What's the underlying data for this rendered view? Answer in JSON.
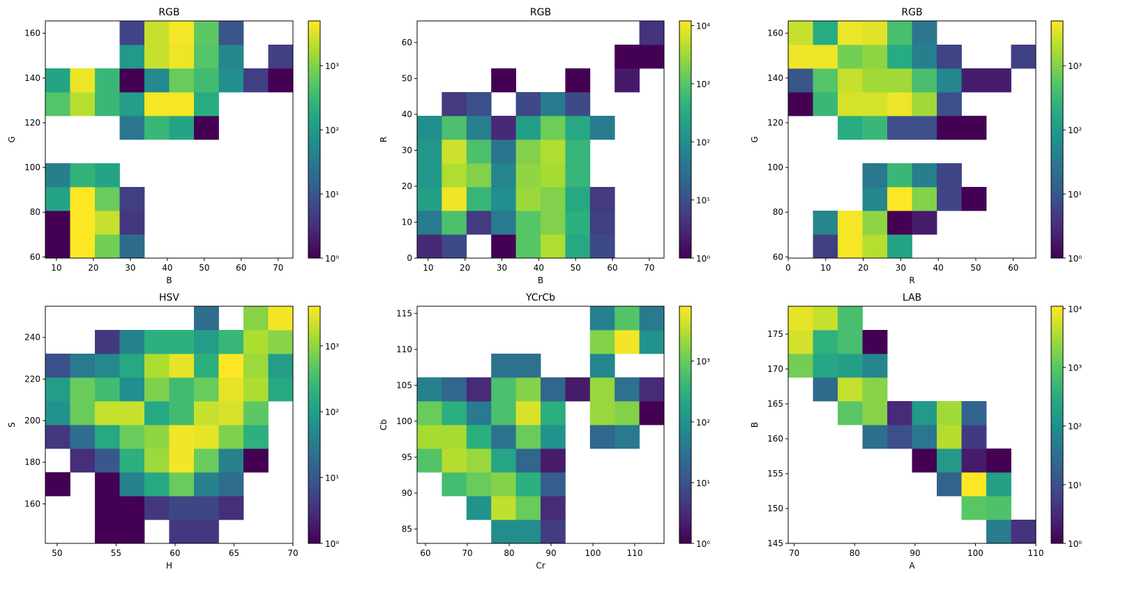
{
  "chart_data": [
    {
      "type": "heatmap",
      "title": "RGB",
      "xlabel": "B",
      "ylabel": "G",
      "xlim": [
        7,
        74
      ],
      "ylim": [
        59.5,
        165.5
      ],
      "xticks": [
        10,
        20,
        30,
        40,
        50,
        60,
        70
      ],
      "yticks": [
        60,
        80,
        100,
        120,
        140,
        160
      ],
      "x_edges": [
        7,
        13.7,
        20.4,
        27.1,
        33.8,
        40.5,
        47.2,
        53.9,
        60.6,
        67.3,
        74
      ],
      "y_edges": [
        59.5,
        70.1,
        80.7,
        91.3,
        101.9,
        112.5,
        123.1,
        133.7,
        144.3,
        154.9,
        165.5
      ],
      "colorbar": {
        "scale": "log",
        "min": 1,
        "max": 5000,
        "ticks": [
          "10^0",
          "10^1",
          "10^2",
          "10^3"
        ]
      },
      "values": [
        [
          1,
          5000,
          800,
          20,
          0,
          0,
          0,
          0,
          0,
          0
        ],
        [
          1,
          5000,
          2500,
          4,
          0,
          0,
          0,
          0,
          0,
          0
        ],
        [
          150,
          5000,
          700,
          5,
          0,
          0,
          0,
          0,
          0,
          0
        ],
        [
          40,
          250,
          150,
          0,
          0,
          0,
          0,
          0,
          0,
          0
        ],
        [
          0,
          0,
          0,
          0,
          0,
          0,
          0,
          0,
          0,
          0
        ],
        [
          0,
          0,
          0,
          30,
          300,
          150,
          1,
          0,
          0,
          0
        ],
        [
          500,
          2000,
          300,
          120,
          4500,
          4500,
          200,
          0,
          0,
          0
        ],
        [
          150,
          4000,
          300,
          1,
          60,
          700,
          350,
          70,
          5,
          1
        ],
        [
          0,
          0,
          0,
          100,
          2500,
          4000,
          500,
          50,
          0,
          5
        ],
        [
          0,
          0,
          0,
          6,
          2500,
          4500,
          600,
          10,
          0,
          0
        ]
      ]
    },
    {
      "type": "heatmap",
      "title": "RGB",
      "xlabel": "B",
      "ylabel": "R",
      "xlim": [
        7,
        74
      ],
      "ylim": [
        0,
        66
      ],
      "xticks": [
        10,
        20,
        30,
        40,
        50,
        60,
        70
      ],
      "yticks": [
        0,
        10,
        20,
        30,
        40,
        50,
        60
      ],
      "x_edges": [
        7,
        13.7,
        20.4,
        27.1,
        33.8,
        40.5,
        47.2,
        53.9,
        60.6,
        67.3,
        74
      ],
      "y_edges": [
        0,
        6.6,
        13.2,
        19.8,
        26.4,
        33,
        39.6,
        46.2,
        52.8,
        59.4,
        66
      ],
      "colorbar": {
        "scale": "log",
        "min": 1,
        "max": 12000,
        "ticks": [
          "10^0",
          "10^1",
          "10^2",
          "10^3",
          "10^4"
        ]
      },
      "values": [
        [
          3,
          8,
          0,
          1,
          1000,
          4000,
          300,
          8,
          0,
          0
        ],
        [
          50,
          800,
          5,
          50,
          1000,
          2000,
          400,
          6,
          0,
          0
        ],
        [
          200,
          10000,
          500,
          100,
          3000,
          2000,
          300,
          5,
          0,
          0
        ],
        [
          150,
          4000,
          2000,
          70,
          2500,
          3500,
          500,
          0,
          0,
          0
        ],
        [
          150,
          6000,
          800,
          40,
          2000,
          4000,
          500,
          0,
          0,
          0
        ],
        [
          100,
          800,
          60,
          3,
          200,
          1500,
          300,
          50,
          0,
          0
        ],
        [
          0,
          5,
          10,
          0,
          8,
          50,
          8,
          0,
          0,
          0
        ],
        [
          0,
          0,
          0,
          1,
          0,
          0,
          1,
          0,
          2,
          0
        ],
        [
          0,
          0,
          0,
          0,
          0,
          0,
          0,
          0,
          1,
          1
        ],
        [
          0,
          0,
          0,
          0,
          0,
          0,
          0,
          0,
          0,
          4
        ]
      ]
    },
    {
      "type": "heatmap",
      "title": "RGB",
      "xlabel": "R",
      "ylabel": "G",
      "xlim": [
        0,
        66
      ],
      "ylim": [
        59.5,
        165.5
      ],
      "xticks": [
        0,
        10,
        20,
        30,
        40,
        50,
        60
      ],
      "yticks": [
        60,
        80,
        100,
        120,
        140,
        160
      ],
      "x_edges": [
        0,
        6.6,
        13.2,
        19.8,
        26.4,
        33,
        39.6,
        46.2,
        52.8,
        59.4,
        66
      ],
      "y_edges": [
        59.5,
        70.1,
        80.7,
        91.3,
        101.9,
        112.5,
        123.1,
        133.7,
        144.3,
        154.9,
        165.5
      ],
      "colorbar": {
        "scale": "log",
        "min": 1,
        "max": 5000,
        "ticks": [
          "10^0",
          "10^1",
          "10^2",
          "10^3"
        ]
      },
      "values": [
        [
          0,
          5,
          4500,
          2000,
          150,
          0,
          0,
          0,
          0,
          0
        ],
        [
          0,
          50,
          4500,
          1200,
          1,
          2,
          0,
          0,
          0,
          0
        ],
        [
          0,
          0,
          0,
          50,
          5000,
          1000,
          6,
          1,
          0,
          0
        ],
        [
          0,
          0,
          0,
          30,
          300,
          40,
          6,
          0,
          0,
          0
        ],
        [
          0,
          0,
          0,
          0,
          0,
          0,
          0,
          0,
          0,
          0
        ],
        [
          0,
          0,
          200,
          300,
          8,
          8,
          1,
          1,
          0,
          0
        ],
        [
          1,
          300,
          3000,
          3000,
          4000,
          1500,
          8,
          0,
          0,
          0
        ],
        [
          10,
          500,
          2500,
          1500,
          1500,
          400,
          50,
          2,
          2,
          0
        ],
        [
          4000,
          4000,
          800,
          1200,
          200,
          40,
          6,
          0,
          0,
          5
        ],
        [
          2500,
          200,
          4000,
          3500,
          400,
          30,
          0,
          0,
          0,
          0
        ]
      ]
    },
    {
      "type": "heatmap",
      "title": "HSV",
      "xlabel": "H",
      "ylabel": "S",
      "xlim": [
        49,
        70
      ],
      "ylim": [
        141,
        255
      ],
      "xticks": [
        50,
        55,
        60,
        65,
        70
      ],
      "yticks": [
        160,
        180,
        200,
        220,
        240
      ],
      "x_edges": [
        49,
        51.1,
        53.2,
        55.3,
        57.4,
        59.5,
        61.6,
        63.7,
        65.8,
        67.9,
        70
      ],
      "y_edges": [
        141,
        152.4,
        163.8,
        175.2,
        186.6,
        198,
        209.4,
        220.8,
        232.2,
        243.6,
        255
      ],
      "colorbar": {
        "scale": "log",
        "min": 1,
        "max": 4000,
        "ticks": [
          "10^0",
          "10^1",
          "10^2",
          "10^3"
        ]
      },
      "values": [
        [
          0,
          0,
          1,
          1,
          0,
          4,
          4,
          0,
          0,
          0
        ],
        [
          0,
          0,
          1,
          1,
          4,
          6,
          6,
          3,
          0,
          0
        ],
        [
          1,
          0,
          1,
          40,
          150,
          600,
          40,
          20,
          0,
          0
        ],
        [
          0,
          3,
          10,
          200,
          1200,
          3500,
          600,
          40,
          1,
          0
        ],
        [
          4,
          20,
          150,
          600,
          1000,
          3500,
          3000,
          800,
          200,
          0
        ],
        [
          70,
          600,
          2000,
          2000,
          150,
          300,
          2000,
          2500,
          500,
          0
        ],
        [
          100,
          600,
          300,
          60,
          800,
          300,
          600,
          3000,
          1500,
          150
        ],
        [
          8,
          30,
          50,
          150,
          1500,
          3000,
          200,
          4000,
          1200,
          100
        ],
        [
          0,
          0,
          4,
          40,
          200,
          200,
          100,
          250,
          1500,
          900
        ],
        [
          0,
          0,
          0,
          0,
          0,
          0,
          20,
          0,
          900,
          3500
        ]
      ]
    },
    {
      "type": "heatmap",
      "title": "YCrCb",
      "xlabel": "Cr",
      "ylabel": "Cb",
      "xlim": [
        58,
        117
      ],
      "ylim": [
        83,
        116
      ],
      "xticks": [
        60,
        70,
        80,
        90,
        100,
        110
      ],
      "yticks": [
        85,
        90,
        95,
        100,
        105,
        110,
        115
      ],
      "x_edges": [
        58,
        63.9,
        69.8,
        75.7,
        81.6,
        87.5,
        93.4,
        99.3,
        105.2,
        111.1,
        117
      ],
      "y_edges": [
        83,
        86.3,
        89.6,
        92.9,
        96.2,
        99.5,
        102.8,
        106.1,
        109.4,
        112.7,
        116
      ],
      "colorbar": {
        "scale": "log",
        "min": 1,
        "max": 8000,
        "ticks": [
          "10^0",
          "10^1",
          "10^2",
          "10^3"
        ]
      },
      "values": [
        [
          0,
          0,
          0,
          80,
          80,
          5,
          0,
          0,
          0,
          0
        ],
        [
          0,
          0,
          100,
          3500,
          1000,
          3,
          0,
          0,
          0,
          0
        ],
        [
          0,
          500,
          1000,
          1500,
          300,
          15,
          0,
          0,
          0,
          0
        ],
        [
          700,
          3000,
          2000,
          200,
          20,
          2,
          0,
          0,
          0,
          0
        ],
        [
          2500,
          2500,
          300,
          30,
          1000,
          100,
          0,
          20,
          40,
          0
        ],
        [
          1000,
          300,
          40,
          600,
          5000,
          300,
          0,
          2000,
          1500,
          1
        ],
        [
          50,
          20,
          3,
          600,
          1500,
          20,
          2,
          2000,
          30,
          3
        ],
        [
          0,
          0,
          0,
          30,
          30,
          0,
          0,
          60,
          0,
          0
        ],
        [
          0,
          0,
          0,
          0,
          0,
          0,
          0,
          1500,
          7000,
          100
        ],
        [
          0,
          0,
          0,
          0,
          0,
          0,
          0,
          50,
          700,
          40
        ]
      ]
    },
    {
      "type": "heatmap",
      "title": "LAB",
      "xlabel": "A",
      "ylabel": "B",
      "xlim": [
        69,
        110
      ],
      "ylim": [
        145,
        179
      ],
      "xticks": [
        70,
        80,
        90,
        100,
        110
      ],
      "yticks": [
        145,
        150,
        155,
        160,
        165,
        170,
        175
      ],
      "x_edges": [
        69,
        73.1,
        77.2,
        81.3,
        85.4,
        89.5,
        93.6,
        97.7,
        101.8,
        105.9,
        110
      ],
      "y_edges": [
        145,
        148.4,
        151.8,
        155.2,
        158.6,
        162,
        165.4,
        168.8,
        172.2,
        175.6,
        179
      ],
      "colorbar": {
        "scale": "log",
        "min": 1,
        "max": 11000,
        "ticks": [
          "10^0",
          "10^1",
          "10^2",
          "10^3",
          "10^4"
        ]
      },
      "values": [
        [
          0,
          0,
          0,
          0,
          0,
          0,
          0,
          0,
          50,
          4
        ],
        [
          0,
          0,
          0,
          0,
          0,
          0,
          0,
          1000,
          800,
          0
        ],
        [
          0,
          0,
          0,
          0,
          0,
          0,
          20,
          11000,
          200,
          0
        ],
        [
          0,
          0,
          0,
          0,
          0,
          1,
          150,
          2,
          1,
          0
        ],
        [
          0,
          0,
          0,
          30,
          10,
          40,
          4000,
          5,
          0,
          0
        ],
        [
          0,
          0,
          1000,
          2000,
          3,
          150,
          3000,
          20,
          0,
          0
        ],
        [
          0,
          25,
          5000,
          2000,
          0,
          0,
          0,
          0,
          0,
          0
        ],
        [
          1500,
          250,
          200,
          70,
          0,
          0,
          0,
          0,
          0,
          0
        ],
        [
          6000,
          400,
          700,
          1,
          0,
          0,
          0,
          0,
          0,
          0
        ],
        [
          8000,
          5000,
          700,
          0,
          0,
          0,
          0,
          0,
          0,
          0
        ]
      ]
    }
  ]
}
